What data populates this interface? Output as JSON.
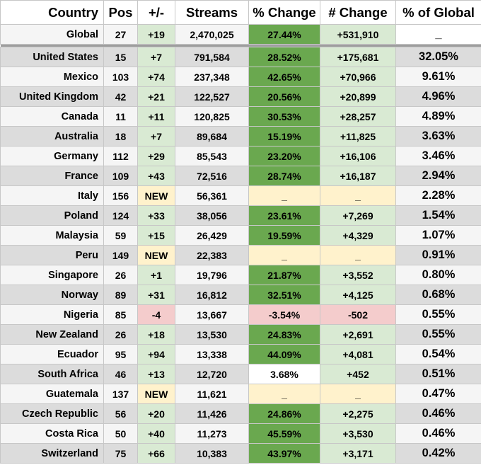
{
  "headers": {
    "country": "Country",
    "pos": "Pos",
    "move": "+/-",
    "streams": "Streams",
    "pct_change": "% Change",
    "num_change": "# Change",
    "pct_global": "% of Global"
  },
  "colors": {
    "light_green": "#d9ead3",
    "dark_green": "#6aa84f",
    "light_yellow": "#fff2cc",
    "light_red": "#f4cccc",
    "row_gray": "#dcdcdc",
    "row_light": "#f5f5f5"
  },
  "rows": [
    {
      "country": "Global",
      "pos": "27",
      "move": "+19",
      "streams": "2,470,025",
      "pct_change": "27.44%",
      "num_change": "+531,910",
      "pct_global": "_"
    },
    {
      "country": "United States",
      "pos": "15",
      "move": "+7",
      "streams": "791,584",
      "pct_change": "28.52%",
      "num_change": "+175,681",
      "pct_global": "32.05%"
    },
    {
      "country": "Mexico",
      "pos": "103",
      "move": "+74",
      "streams": "237,348",
      "pct_change": "42.65%",
      "num_change": "+70,966",
      "pct_global": "9.61%"
    },
    {
      "country": "United Kingdom",
      "pos": "42",
      "move": "+21",
      "streams": "122,527",
      "pct_change": "20.56%",
      "num_change": "+20,899",
      "pct_global": "4.96%"
    },
    {
      "country": "Canada",
      "pos": "11",
      "move": "+11",
      "streams": "120,825",
      "pct_change": "30.53%",
      "num_change": "+28,257",
      "pct_global": "4.89%"
    },
    {
      "country": "Australia",
      "pos": "18",
      "move": "+7",
      "streams": "89,684",
      "pct_change": "15.19%",
      "num_change": "+11,825",
      "pct_global": "3.63%"
    },
    {
      "country": "Germany",
      "pos": "112",
      "move": "+29",
      "streams": "85,543",
      "pct_change": "23.20%",
      "num_change": "+16,106",
      "pct_global": "3.46%"
    },
    {
      "country": "France",
      "pos": "109",
      "move": "+43",
      "streams": "72,516",
      "pct_change": "28.74%",
      "num_change": "+16,187",
      "pct_global": "2.94%"
    },
    {
      "country": "Italy",
      "pos": "156",
      "move": "NEW",
      "streams": "56,361",
      "pct_change": "_",
      "num_change": "_",
      "pct_global": "2.28%"
    },
    {
      "country": "Poland",
      "pos": "124",
      "move": "+33",
      "streams": "38,056",
      "pct_change": "23.61%",
      "num_change": "+7,269",
      "pct_global": "1.54%"
    },
    {
      "country": "Malaysia",
      "pos": "59",
      "move": "+15",
      "streams": "26,429",
      "pct_change": "19.59%",
      "num_change": "+4,329",
      "pct_global": "1.07%"
    },
    {
      "country": "Peru",
      "pos": "149",
      "move": "NEW",
      "streams": "22,383",
      "pct_change": "_",
      "num_change": "_",
      "pct_global": "0.91%"
    },
    {
      "country": "Singapore",
      "pos": "26",
      "move": "+1",
      "streams": "19,796",
      "pct_change": "21.87%",
      "num_change": "+3,552",
      "pct_global": "0.80%"
    },
    {
      "country": "Norway",
      "pos": "89",
      "move": "+31",
      "streams": "16,812",
      "pct_change": "32.51%",
      "num_change": "+4,125",
      "pct_global": "0.68%"
    },
    {
      "country": "Nigeria",
      "pos": "85",
      "move": "-4",
      "streams": "13,667",
      "pct_change": "-3.54%",
      "num_change": "-502",
      "pct_global": "0.55%"
    },
    {
      "country": "New Zealand",
      "pos": "26",
      "move": "+18",
      "streams": "13,530",
      "pct_change": "24.83%",
      "num_change": "+2,691",
      "pct_global": "0.55%"
    },
    {
      "country": "Ecuador",
      "pos": "95",
      "move": "+94",
      "streams": "13,338",
      "pct_change": "44.09%",
      "num_change": "+4,081",
      "pct_global": "0.54%"
    },
    {
      "country": "South Africa",
      "pos": "46",
      "move": "+13",
      "streams": "12,720",
      "pct_change": "3.68%",
      "num_change": "+452",
      "pct_global": "0.51%"
    },
    {
      "country": "Guatemala",
      "pos": "137",
      "move": "NEW",
      "streams": "11,621",
      "pct_change": "_",
      "num_change": "_",
      "pct_global": "0.47%"
    },
    {
      "country": "Czech Republic",
      "pos": "56",
      "move": "+20",
      "streams": "11,426",
      "pct_change": "24.86%",
      "num_change": "+2,275",
      "pct_global": "0.46%"
    },
    {
      "country": "Costa Rica",
      "pos": "50",
      "move": "+40",
      "streams": "11,273",
      "pct_change": "45.59%",
      "num_change": "+3,530",
      "pct_global": "0.46%"
    },
    {
      "country": "Switzerland",
      "pos": "75",
      "move": "+66",
      "streams": "10,383",
      "pct_change": "43.97%",
      "num_change": "+3,171",
      "pct_global": "0.42%"
    }
  ]
}
